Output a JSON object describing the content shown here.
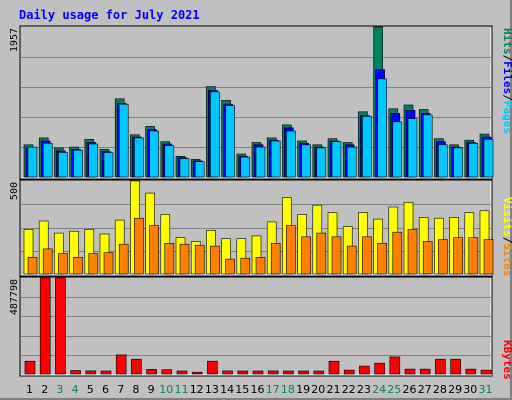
{
  "title": "Daily usage for July 2021",
  "colors": {
    "hits": "#00805c",
    "files": "#0000ff",
    "pages": "#00c8ff",
    "visits": "#ffff00",
    "sites": "#ff8000",
    "kbytes": "#ff0000",
    "weekend_day": "#00805c",
    "weekday": "#000000",
    "slash": "#000000"
  },
  "chart_data": [
    {
      "type": "bar",
      "categories": [
        "1",
        "2",
        "3",
        "4",
        "5",
        "6",
        "7",
        "8",
        "9",
        "10",
        "11",
        "12",
        "13",
        "14",
        "15",
        "16",
        "17",
        "18",
        "19",
        "20",
        "21",
        "22",
        "23",
        "24",
        "25",
        "26",
        "27",
        "28",
        "29",
        "30",
        "31"
      ],
      "ylim": [
        0,
        1957
      ],
      "ylabel_max": "1957",
      "series": [
        {
          "name": "Hits",
          "values": [
            420,
            510,
            380,
            390,
            490,
            360,
            1020,
            550,
            660,
            460,
            270,
            230,
            1180,
            1000,
            300,
            450,
            510,
            680,
            470,
            420,
            500,
            450,
            850,
            1957,
            890,
            940,
            880,
            500,
            420,
            480,
            560
          ]
        },
        {
          "name": "Files",
          "values": [
            380,
            470,
            340,
            360,
            450,
            330,
            960,
            520,
            620,
            430,
            250,
            210,
            1130,
            950,
            270,
            420,
            480,
            640,
            440,
            390,
            470,
            420,
            800,
            1400,
            830,
            870,
            830,
            460,
            390,
            450,
            520
          ]
        },
        {
          "name": "Pages",
          "values": [
            390,
            440,
            320,
            350,
            430,
            320,
            950,
            510,
            600,
            410,
            240,
            200,
            1110,
            930,
            260,
            390,
            470,
            600,
            420,
            380,
            460,
            390,
            790,
            1280,
            720,
            760,
            810,
            420,
            380,
            440,
            490
          ]
        }
      ]
    },
    {
      "type": "bar",
      "categories": [
        "1",
        "2",
        "3",
        "4",
        "5",
        "6",
        "7",
        "8",
        "9",
        "10",
        "11",
        "12",
        "13",
        "14",
        "15",
        "16",
        "17",
        "18",
        "19",
        "20",
        "21",
        "22",
        "23",
        "24",
        "25",
        "26",
        "27",
        "28",
        "29",
        "30",
        "31"
      ],
      "ylim": [
        0,
        500
      ],
      "ylabel_max": "500",
      "series": [
        {
          "name": "Visits",
          "values": [
            240,
            285,
            220,
            230,
            240,
            215,
            290,
            500,
            435,
            320,
            195,
            175,
            235,
            190,
            190,
            205,
            280,
            410,
            320,
            370,
            330,
            255,
            330,
            295,
            360,
            385,
            305,
            300,
            305,
            330,
            340
          ]
        },
        {
          "name": "Sites",
          "values": [
            90,
            135,
            110,
            90,
            110,
            115,
            160,
            300,
            260,
            165,
            160,
            155,
            150,
            80,
            85,
            90,
            165,
            260,
            200,
            220,
            200,
            150,
            200,
            165,
            225,
            240,
            175,
            185,
            195,
            195,
            185
          ]
        }
      ]
    },
    {
      "type": "bar",
      "categories": [
        "1",
        "2",
        "3",
        "4",
        "5",
        "6",
        "7",
        "8",
        "9",
        "10",
        "11",
        "12",
        "13",
        "14",
        "15",
        "16",
        "17",
        "18",
        "19",
        "20",
        "21",
        "22",
        "23",
        "24",
        "25",
        "26",
        "27",
        "28",
        "29",
        "30",
        "31"
      ],
      "ylim": [
        0,
        487798
      ],
      "ylabel_max": "487798",
      "series": [
        {
          "name": "KBytes",
          "values": [
            65000,
            487798,
            487798,
            18000,
            16000,
            15000,
            97000,
            75000,
            24000,
            22000,
            15000,
            9000,
            65000,
            16000,
            15000,
            15000,
            16000,
            15000,
            15000,
            15000,
            65000,
            20000,
            40000,
            55000,
            87000,
            25000,
            25000,
            75000,
            75000,
            25000,
            20000
          ]
        }
      ]
    }
  ],
  "legend": {
    "top": {
      "pages": "Pages",
      "files": "Files",
      "hits": "Hits",
      "slash": "/"
    },
    "middle": {
      "sites": "Sites",
      "visits": "Visits",
      "slash": "/"
    },
    "bottom": {
      "kbytes": "KBytes"
    }
  },
  "weekend_days": [
    "3",
    "4",
    "10",
    "11",
    "17",
    "18",
    "24",
    "25",
    "31"
  ]
}
